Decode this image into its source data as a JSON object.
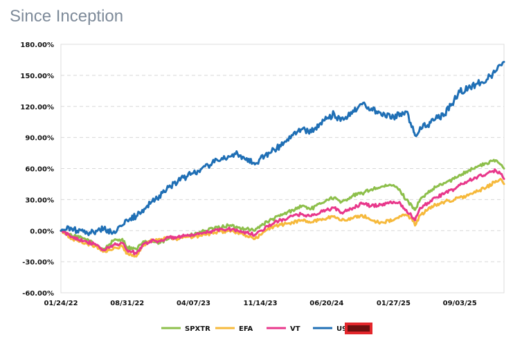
{
  "title": "Since Inception",
  "chart_data": {
    "type": "line",
    "title": "Since Inception",
    "xlabel": "",
    "ylabel": "",
    "x_tick_labels": [
      "01/24/22",
      "08/31/22",
      "04/07/23",
      "11/14/23",
      "06/20/24",
      "01/27/25",
      "09/03/25"
    ],
    "y_tick_labels": [
      "180.00%",
      "150.00%",
      "120.00%",
      "90.00%",
      "60.00%",
      "30.00%",
      "0.00%",
      "-30.00%",
      "-60.00%"
    ],
    "ylim": [
      -60,
      180
    ],
    "x_range": [
      "01/24/22",
      "01/27/26"
    ],
    "grid": "horizontal dashed",
    "legend_position": "bottom",
    "x": [
      "01/24/22",
      "03/01/22",
      "04/15/22",
      "05/20/22",
      "06/15/22",
      "07/15/22",
      "08/15/22",
      "08/31/22",
      "09/30/22",
      "10/20/22",
      "11/15/22",
      "12/15/22",
      "01/15/23",
      "02/15/23",
      "03/15/23",
      "04/07/23",
      "05/15/23",
      "06/15/23",
      "07/31/23",
      "08/31/23",
      "09/30/23",
      "10/27/23",
      "11/14/23",
      "12/31/23",
      "01/31/24",
      "02/29/24",
      "03/31/24",
      "04/30/24",
      "05/31/24",
      "06/20/24",
      "07/15/24",
      "08/05/24",
      "09/15/24",
      "10/15/24",
      "11/15/24",
      "12/15/24",
      "01/27/25",
      "02/19/25",
      "03/10/25",
      "04/04/25",
      "04/08/25",
      "04/25/25",
      "05/20/25",
      "06/15/25",
      "07/15/25",
      "08/15/25",
      "09/03/25",
      "10/01/25",
      "11/01/25",
      "12/01/25",
      "12/31/25",
      "01/15/26",
      "01/27/26"
    ],
    "series": [
      {
        "name": "SPXTR",
        "color": "#8dbf4b",
        "values": [
          0,
          -5,
          -8,
          -14,
          -18,
          -10,
          -8,
          -16,
          -18,
          -12,
          -10,
          -12,
          -8,
          -6,
          -5,
          -4,
          0,
          2,
          5,
          3,
          2,
          0,
          5,
          12,
          16,
          20,
          24,
          21,
          26,
          30,
          32,
          27,
          34,
          36,
          40,
          42,
          44,
          38,
          30,
          22,
          20,
          30,
          36,
          42,
          46,
          50,
          54,
          58,
          62,
          65,
          68,
          64,
          60
        ]
      },
      {
        "name": "EFA",
        "color": "#f6b93b",
        "values": [
          0,
          -8,
          -12,
          -15,
          -20,
          -18,
          -15,
          -22,
          -25,
          -15,
          -10,
          -8,
          -6,
          -8,
          -6,
          -6,
          -4,
          -2,
          0,
          -2,
          -5,
          -8,
          -4,
          5,
          6,
          8,
          10,
          8,
          11,
          12,
          14,
          10,
          12,
          15,
          10,
          8,
          10,
          14,
          15,
          10,
          5,
          15,
          20,
          25,
          28,
          30,
          32,
          34,
          38,
          42,
          48,
          50,
          45
        ]
      },
      {
        "name": "VT",
        "color": "#e8378b",
        "values": [
          0,
          -6,
          -10,
          -14,
          -19,
          -14,
          -12,
          -19,
          -22,
          -14,
          -10,
          -10,
          -7,
          -6,
          -5,
          -5,
          -2,
          0,
          2,
          0,
          -2,
          -4,
          0,
          8,
          11,
          14,
          16,
          14,
          18,
          20,
          22,
          17,
          22,
          26,
          24,
          25,
          28,
          26,
          20,
          12,
          10,
          22,
          27,
          32,
          36,
          40,
          44,
          48,
          52,
          55,
          58,
          55,
          50
        ]
      },
      {
        "name": "U9",
        "color": "#1f6fb5",
        "values": [
          0,
          2,
          -3,
          0,
          2,
          -2,
          5,
          10,
          14,
          20,
          26,
          34,
          42,
          48,
          52,
          56,
          62,
          66,
          72,
          74,
          70,
          64,
          70,
          78,
          85,
          92,
          98,
          95,
          104,
          108,
          113,
          106,
          116,
          122,
          118,
          114,
          110,
          113,
          115,
          95,
          92,
          100,
          102,
          108,
          112,
          126,
          134,
          138,
          142,
          146,
          154,
          160,
          163
        ]
      }
    ]
  },
  "legend": {
    "items": [
      "SPXTR",
      "EFA",
      "VT",
      "U9"
    ],
    "redacted_color": "#e3262b"
  }
}
